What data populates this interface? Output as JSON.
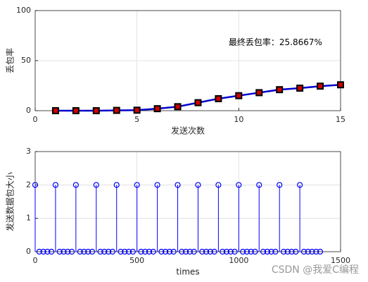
{
  "chart_data": [
    {
      "type": "line",
      "xlabel": "发送次数",
      "ylabel": "丢包率",
      "annotations": [
        "最终丢包率：25.8667%"
      ],
      "x": [
        1,
        2,
        3,
        4,
        5,
        6,
        7,
        8,
        9,
        10,
        11,
        12,
        13,
        14,
        15
      ],
      "series": [
        {
          "color": "#0000cc",
          "marker_color": "#cc0000",
          "marker_edge": "#000000",
          "values": [
            0,
            0,
            0,
            0.3,
            0.5,
            2,
            4,
            8,
            12,
            15,
            18,
            21,
            22.5,
            24.5,
            25.8667
          ]
        }
      ],
      "xlim": [
        0,
        15
      ],
      "xticks": [
        0,
        5,
        10,
        15
      ],
      "ylim": [
        0,
        100
      ],
      "yticks": [
        0,
        50,
        100
      ],
      "grid": true
    },
    {
      "type": "stem",
      "xlabel": "times",
      "ylabel": "发送数据包大小",
      "x": [
        0,
        20,
        40,
        60,
        80,
        100,
        120,
        140,
        160,
        180,
        200,
        220,
        240,
        260,
        280,
        300,
        320,
        340,
        360,
        380,
        400,
        420,
        440,
        460,
        480,
        500,
        520,
        540,
        560,
        580,
        600,
        620,
        640,
        660,
        680,
        700,
        720,
        740,
        760,
        780,
        800,
        820,
        840,
        860,
        880,
        900,
        920,
        940,
        960,
        980,
        1000,
        1020,
        1040,
        1060,
        1080,
        1100,
        1120,
        1140,
        1160,
        1180,
        1200,
        1220,
        1240,
        1260,
        1280,
        1300,
        1320,
        1340,
        1360,
        1380,
        1400
      ],
      "series": [
        {
          "color": "#0000ff",
          "values": [
            2,
            0,
            0,
            0,
            0,
            2,
            0,
            0,
            0,
            0,
            2,
            0,
            0,
            0,
            0,
            2,
            0,
            0,
            0,
            0,
            2,
            0,
            0,
            0,
            0,
            2,
            0,
            0,
            0,
            0,
            2,
            0,
            0,
            0,
            0,
            2,
            0,
            0,
            0,
            0,
            2,
            0,
            0,
            0,
            0,
            2,
            0,
            0,
            0,
            0,
            2,
            0,
            0,
            0,
            0,
            2,
            0,
            0,
            0,
            0,
            2,
            0,
            0,
            0,
            0,
            2,
            0,
            0,
            0,
            0,
            0
          ]
        }
      ],
      "xlim": [
        0,
        1500
      ],
      "xticks": [
        0,
        500,
        1000,
        1500
      ],
      "ylim": [
        0,
        3
      ],
      "yticks": [
        0,
        1,
        2,
        3
      ],
      "grid": true
    }
  ],
  "watermark": "CSDN @我爱C编程"
}
